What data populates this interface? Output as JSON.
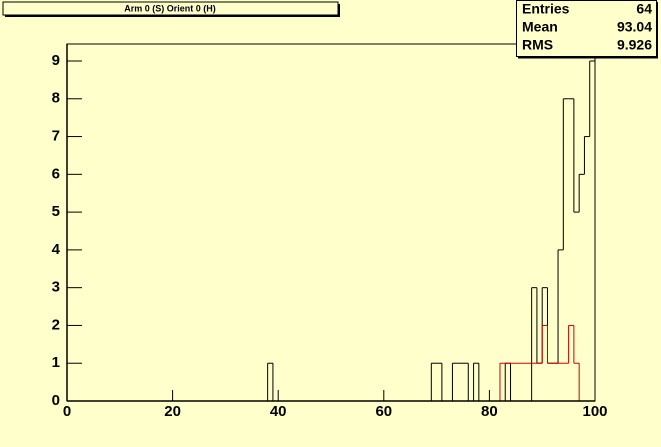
{
  "chart_data": {
    "type": "histogram",
    "title": "Arm 0 (S) Orient 0 (H)",
    "stats": {
      "labels": [
        "Entries",
        "Mean",
        "RMS"
      ],
      "values": [
        64,
        93.04,
        9.926
      ]
    },
    "bins": [
      0,
      1,
      2,
      3,
      4,
      5,
      6,
      7,
      8,
      9,
      10,
      11,
      12,
      13,
      14,
      15,
      16,
      17,
      18,
      19,
      20,
      21,
      22,
      23,
      24,
      25,
      26,
      27,
      28,
      29,
      30,
      31,
      32,
      33,
      34,
      35,
      36,
      37,
      38,
      39,
      40,
      41,
      42,
      43,
      44,
      45,
      46,
      47,
      48,
      49,
      50,
      51,
      52,
      53,
      54,
      55,
      56,
      57,
      58,
      59,
      60,
      61,
      62,
      63,
      64,
      65,
      66,
      67,
      68,
      69,
      70,
      71,
      72,
      73,
      74,
      75,
      76,
      77,
      78,
      79,
      80,
      81,
      82,
      83,
      84,
      85,
      86,
      87,
      88,
      89,
      90,
      91,
      92,
      93,
      94,
      95,
      96,
      97,
      98,
      99,
      100
    ],
    "series": [
      {
        "color": "#000000",
        "values": [
          0,
          0,
          0,
          0,
          0,
          0,
          0,
          0,
          0,
          0,
          0,
          0,
          0,
          0,
          0,
          0,
          0,
          0,
          0,
          0,
          0,
          0,
          0,
          0,
          0,
          0,
          0,
          0,
          0,
          0,
          0,
          0,
          0,
          0,
          0,
          0,
          0,
          0,
          1,
          0,
          0,
          0,
          0,
          0,
          0,
          0,
          0,
          0,
          0,
          0,
          0,
          0,
          0,
          0,
          0,
          0,
          0,
          0,
          0,
          0,
          0,
          0,
          0,
          0,
          0,
          0,
          0,
          0,
          0,
          1,
          1,
          0,
          0,
          1,
          1,
          1,
          0,
          1,
          0,
          0,
          0,
          0,
          0,
          1,
          0,
          0,
          0,
          0,
          3,
          1,
          3,
          1,
          1,
          4,
          8,
          8,
          5,
          6,
          7,
          9
        ]
      },
      {
        "color": "#cc0000",
        "values": [
          0,
          0,
          0,
          0,
          0,
          0,
          0,
          0,
          0,
          0,
          0,
          0,
          0,
          0,
          0,
          0,
          0,
          0,
          0,
          0,
          0,
          0,
          0,
          0,
          0,
          0,
          0,
          0,
          0,
          0,
          0,
          0,
          0,
          0,
          0,
          0,
          0,
          0,
          0,
          0,
          0,
          0,
          0,
          0,
          0,
          0,
          0,
          0,
          0,
          0,
          0,
          0,
          0,
          0,
          0,
          0,
          0,
          0,
          0,
          0,
          0,
          0,
          0,
          0,
          0,
          0,
          0,
          0,
          0,
          0,
          0,
          0,
          0,
          0,
          0,
          0,
          0,
          0,
          0,
          0,
          0,
          0,
          1,
          1,
          1,
          1,
          1,
          1,
          1,
          1,
          2,
          1,
          1,
          1,
          1,
          2,
          1,
          0,
          0,
          0
        ]
      }
    ],
    "xlim": [
      0,
      100
    ],
    "xticks": [
      0,
      20,
      40,
      60,
      80,
      100
    ],
    "ylim": [
      0,
      9.45
    ],
    "yticks": [
      0,
      1,
      2,
      3,
      4,
      5,
      6,
      7,
      8,
      9
    ]
  }
}
